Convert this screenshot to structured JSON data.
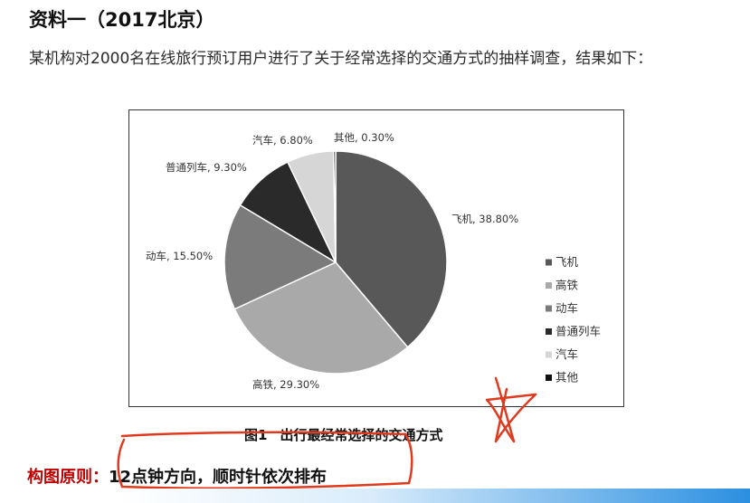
{
  "document": {
    "heading": "资料一（2017北京）",
    "paragraph": "某机构对2000名在线旅行预订用户进行了关于经常选择的交通方式的抽样调查，结果如下：",
    "figure": {
      "number": "图1",
      "title": "出行最经常选择的交通方式"
    },
    "principle": {
      "label": "构图原则：",
      "text": "12点钟方向，顺时针依次排布"
    }
  },
  "chart_data": {
    "type": "pie",
    "start_angle": "12 o'clock",
    "direction": "clockwise",
    "legend_position": "right",
    "slices": [
      {
        "name": "飞机",
        "value": 38.8,
        "label": "飞机, 38.80%",
        "color": "#585858"
      },
      {
        "name": "高铁",
        "value": 29.3,
        "label": "高铁, 29.30%",
        "color": "#a9a9a9"
      },
      {
        "name": "动车",
        "value": 15.5,
        "label": "动车, 15.50%",
        "color": "#7b7b7b"
      },
      {
        "name": "普通列车",
        "value": 9.3,
        "label": "普通列车, 9.30%",
        "color": "#2a2a2a"
      },
      {
        "name": "汽车",
        "value": 6.8,
        "label": "汽车, 6.80%",
        "color": "#d6d6d6"
      },
      {
        "name": "其他",
        "value": 0.3,
        "label": "其他, 0.30%",
        "color": "#111111"
      }
    ]
  }
}
